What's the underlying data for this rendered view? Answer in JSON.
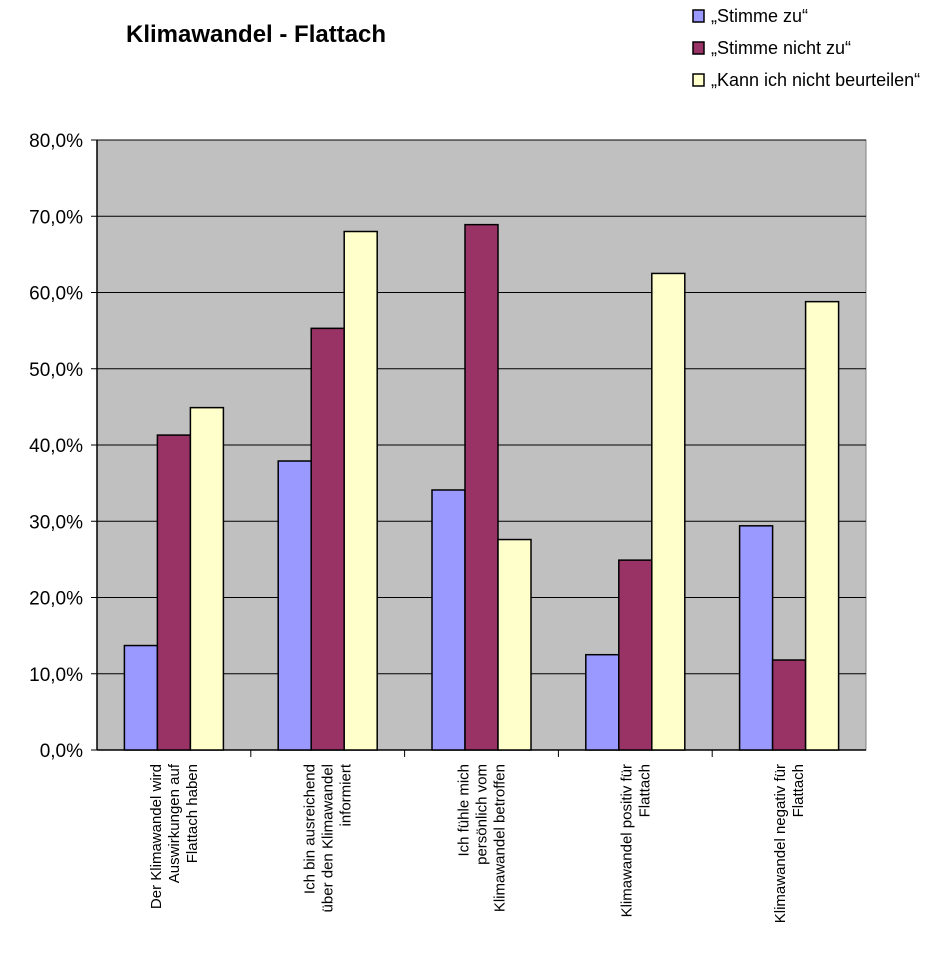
{
  "chart_data": {
    "type": "bar",
    "title": "Klimawandel - Flattach",
    "categories": [
      [
        "Der Klimawandel wird",
        "Auswirkungen auf",
        "Flattach  haben"
      ],
      [
        "Ich bin ausreichend",
        "über den Klimawandel",
        "informiert"
      ],
      [
        "Ich fühle mich",
        "persönlich vom",
        "Klimawandel betroffen"
      ],
      [
        "Klimawandel positiv für",
        "Flattach"
      ],
      [
        "Klimawandel negativ für",
        "Flattach"
      ]
    ],
    "series": [
      {
        "name": "„Stimme zu“",
        "color": "#9999ff",
        "values": [
          13.7,
          37.9,
          34.1,
          12.5,
          29.4
        ]
      },
      {
        "name": "„Stimme nicht zu“",
        "color": "#993366",
        "values": [
          41.3,
          55.3,
          68.9,
          24.9,
          11.8
        ]
      },
      {
        "name": "„Kann ich nicht beurteilen“",
        "color": "#ffffcc",
        "values": [
          44.9,
          68.0,
          27.6,
          62.5,
          58.8
        ]
      }
    ],
    "y_ticks": [
      "0,0%",
      "10,0%",
      "20,0%",
      "30,0%",
      "40,0%",
      "50,0%",
      "60,0%",
      "70,0%",
      "80,0%"
    ],
    "ylim": [
      0,
      80
    ],
    "grid": true,
    "plot_background": "#c0c0c0",
    "legend_position": "top-right"
  }
}
